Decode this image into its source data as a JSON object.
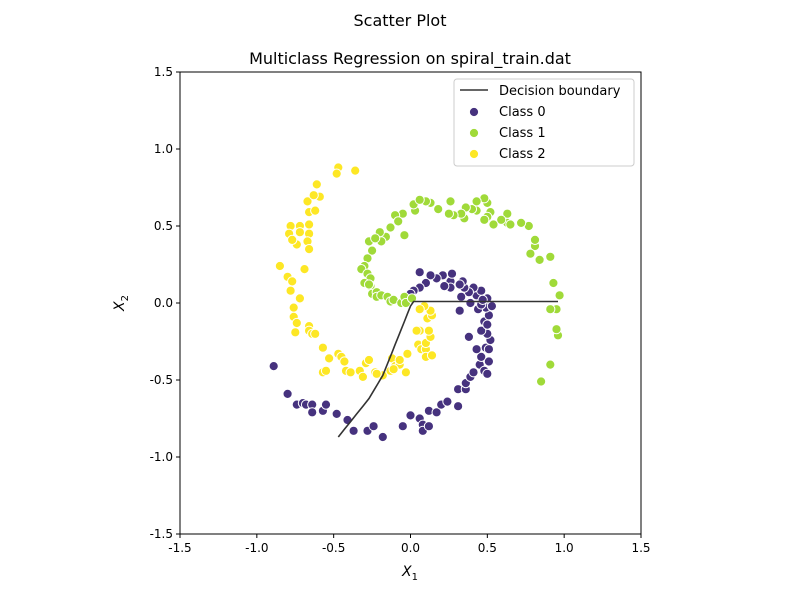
{
  "figure": {
    "suptitle": "Scatter Plot"
  },
  "chart_data": {
    "type": "scatter",
    "title": "Multiclass Regression on spiral_train.dat",
    "xlabel": "X_1",
    "ylabel": "X_2",
    "xlim": [
      -1.5,
      1.5
    ],
    "ylim": [
      -1.5,
      1.5
    ],
    "xticks": [
      "-1.5",
      "-1.0",
      "-0.5",
      "0.0",
      "0.5",
      "1.0",
      "1.5"
    ],
    "yticks": [
      "-1.5",
      "-1.0",
      "-0.5",
      "0.0",
      "0.5",
      "1.0",
      "1.5"
    ],
    "grid": false,
    "legend": {
      "placement": "top-right",
      "entries": [
        {
          "label": "Decision boundary",
          "kind": "line",
          "color": "#333333"
        },
        {
          "label": "Class 0",
          "kind": "marker",
          "color": "#46327e"
        },
        {
          "label": "Class 1",
          "kind": "marker",
          "color": "#a0da39"
        },
        {
          "label": "Class 2",
          "kind": "marker",
          "color": "#fde725"
        }
      ]
    },
    "decision_boundary": {
      "name": "Decision boundary",
      "color": "#333333",
      "points": [
        [
          0.96,
          0.01
        ],
        [
          0.02,
          0.01
        ],
        [
          0.0,
          -0.02
        ],
        [
          -0.02,
          -0.07
        ],
        [
          -0.04,
          -0.12
        ],
        [
          -0.06,
          -0.17
        ],
        [
          -0.08,
          -0.22
        ],
        [
          -0.1,
          -0.27
        ],
        [
          -0.12,
          -0.32
        ],
        [
          -0.14,
          -0.37
        ],
        [
          -0.16,
          -0.42
        ],
        [
          -0.18,
          -0.47
        ],
        [
          -0.21,
          -0.52
        ],
        [
          -0.24,
          -0.57
        ],
        [
          -0.27,
          -0.62
        ],
        [
          -0.31,
          -0.67
        ],
        [
          -0.35,
          -0.72
        ],
        [
          -0.39,
          -0.77
        ],
        [
          -0.43,
          -0.82
        ],
        [
          -0.47,
          -0.87
        ]
      ]
    },
    "series": [
      {
        "name": "Class 0",
        "color": "#46327e",
        "points": [
          [
            -0.89,
            -0.41
          ],
          [
            -0.8,
            -0.59
          ],
          [
            -0.74,
            -0.66
          ],
          [
            -0.7,
            -0.65
          ],
          [
            -0.68,
            -0.66
          ],
          [
            -0.64,
            -0.66
          ],
          [
            -0.64,
            -0.71
          ],
          [
            -0.57,
            -0.7
          ],
          [
            -0.55,
            -0.66
          ],
          [
            -0.48,
            -0.72
          ],
          [
            -0.41,
            -0.76
          ],
          [
            -0.37,
            -0.83
          ],
          [
            -0.28,
            -0.83
          ],
          [
            -0.24,
            -0.8
          ],
          [
            -0.18,
            -0.87
          ],
          [
            -0.05,
            -0.8
          ],
          [
            0.0,
            -0.73
          ],
          [
            0.06,
            -0.75
          ],
          [
            0.08,
            -0.79
          ],
          [
            0.08,
            -0.83
          ],
          [
            0.12,
            -0.8
          ],
          [
            0.12,
            -0.7
          ],
          [
            0.17,
            -0.71
          ],
          [
            0.2,
            -0.66
          ],
          [
            0.24,
            -0.64
          ],
          [
            0.31,
            -0.67
          ],
          [
            0.31,
            -0.56
          ],
          [
            0.36,
            -0.56
          ],
          [
            0.36,
            -0.52
          ],
          [
            0.39,
            -0.48
          ],
          [
            0.41,
            -0.45
          ],
          [
            0.45,
            -0.4
          ],
          [
            0.48,
            -0.44
          ],
          [
            0.5,
            -0.46
          ],
          [
            0.46,
            -0.35
          ],
          [
            0.51,
            -0.38
          ],
          [
            0.43,
            -0.3
          ],
          [
            0.49,
            -0.29
          ],
          [
            0.51,
            -0.3
          ],
          [
            0.52,
            -0.24
          ],
          [
            0.5,
            -0.2
          ],
          [
            0.46,
            -0.18
          ],
          [
            0.48,
            -0.12
          ],
          [
            0.5,
            -0.14
          ],
          [
            0.51,
            -0.08
          ],
          [
            0.49,
            -0.03
          ],
          [
            0.53,
            -0.02
          ],
          [
            0.44,
            -0.04
          ],
          [
            0.46,
            -0.01
          ],
          [
            0.5,
            0.03
          ],
          [
            0.43,
            0.05
          ],
          [
            0.46,
            0.08
          ],
          [
            0.47,
            0.02
          ],
          [
            0.41,
            0.1
          ],
          [
            0.38,
            0.07
          ],
          [
            0.35,
            0.1
          ],
          [
            0.34,
            0.14
          ],
          [
            0.33,
            0.04
          ],
          [
            0.32,
            0.12
          ],
          [
            0.26,
            0.14
          ],
          [
            0.27,
            0.19
          ],
          [
            0.26,
            0.1
          ],
          [
            0.22,
            0.11
          ],
          [
            0.21,
            0.18
          ],
          [
            0.17,
            0.16
          ],
          [
            0.13,
            0.18
          ],
          [
            0.1,
            0.13
          ],
          [
            0.06,
            0.2
          ],
          [
            0.06,
            0.1
          ],
          [
            0.02,
            0.08
          ],
          [
            0.0,
            0.06
          ],
          [
            0.32,
            -0.05
          ],
          [
            0.38,
            -0.22
          ],
          [
            0.39,
            0.0
          ]
        ]
      },
      {
        "name": "Class 1",
        "color": "#a0da39",
        "points": [
          [
            0.85,
            -0.51
          ],
          [
            0.91,
            -0.4
          ],
          [
            0.96,
            -0.21
          ],
          [
            0.95,
            -0.17
          ],
          [
            0.95,
            -0.04
          ],
          [
            0.91,
            -0.04
          ],
          [
            0.97,
            0.05
          ],
          [
            0.93,
            0.13
          ],
          [
            0.91,
            0.3
          ],
          [
            0.84,
            0.28
          ],
          [
            0.81,
            0.37
          ],
          [
            0.81,
            0.41
          ],
          [
            0.77,
            0.5
          ],
          [
            0.63,
            0.52
          ],
          [
            0.65,
            0.51
          ],
          [
            0.63,
            0.58
          ],
          [
            0.59,
            0.54
          ],
          [
            0.54,
            0.51
          ],
          [
            0.52,
            0.59
          ],
          [
            0.5,
            0.56
          ],
          [
            0.48,
            0.54
          ],
          [
            0.5,
            0.65
          ],
          [
            0.48,
            0.68
          ],
          [
            0.43,
            0.6
          ],
          [
            0.4,
            0.61
          ],
          [
            0.36,
            0.62
          ],
          [
            0.35,
            0.55
          ],
          [
            0.33,
            0.58
          ],
          [
            0.28,
            0.57
          ],
          [
            0.25,
            0.58
          ],
          [
            0.18,
            0.61
          ],
          [
            0.13,
            0.65
          ],
          [
            0.1,
            0.66
          ],
          [
            0.03,
            0.6
          ],
          [
            0.02,
            0.64
          ],
          [
            -0.05,
            0.58
          ],
          [
            -0.1,
            0.57
          ],
          [
            -0.04,
            0.44
          ],
          [
            -0.13,
            0.49
          ],
          [
            -0.16,
            0.43
          ],
          [
            -0.19,
            0.4
          ],
          [
            -0.2,
            0.46
          ],
          [
            -0.27,
            0.4
          ],
          [
            -0.25,
            0.34
          ],
          [
            -0.28,
            0.29
          ],
          [
            -0.3,
            0.24
          ],
          [
            -0.32,
            0.22
          ],
          [
            -0.28,
            0.19
          ],
          [
            -0.26,
            0.16
          ],
          [
            -0.3,
            0.13
          ],
          [
            -0.26,
            0.11
          ],
          [
            -0.25,
            0.06
          ],
          [
            -0.22,
            0.07
          ],
          [
            -0.22,
            0.04
          ],
          [
            -0.19,
            0.05
          ],
          [
            -0.15,
            0.04
          ],
          [
            -0.13,
            0.01
          ],
          [
            -0.11,
            0.02
          ],
          [
            -0.06,
            0.0
          ],
          [
            -0.04,
            0.04
          ],
          [
            -0.03,
            0.0
          ],
          [
            -0.27,
            0.12
          ],
          [
            -0.23,
            0.42
          ],
          [
            0.01,
            0.03
          ],
          [
            0.26,
            0.66
          ],
          [
            0.43,
            0.66
          ],
          [
            0.72,
            0.52
          ],
          [
            0.78,
            0.32
          ],
          [
            0.06,
            0.67
          ],
          [
            -0.08,
            0.53
          ]
        ]
      },
      {
        "name": "Class 2",
        "color": "#fde725",
        "points": [
          [
            -0.47,
            0.88
          ],
          [
            -0.48,
            0.84
          ],
          [
            -0.36,
            0.86
          ],
          [
            -0.61,
            0.77
          ],
          [
            -0.59,
            0.69
          ],
          [
            -0.67,
            0.66
          ],
          [
            -0.66,
            0.59
          ],
          [
            -0.62,
            0.6
          ],
          [
            -0.66,
            0.51
          ],
          [
            -0.72,
            0.5
          ],
          [
            -0.78,
            0.5
          ],
          [
            -0.79,
            0.45
          ],
          [
            -0.72,
            0.46
          ],
          [
            -0.66,
            0.45
          ],
          [
            -0.67,
            0.4
          ],
          [
            -0.74,
            0.38
          ],
          [
            -0.77,
            0.41
          ],
          [
            -0.69,
            0.22
          ],
          [
            -0.85,
            0.24
          ],
          [
            -0.8,
            0.17
          ],
          [
            -0.77,
            0.14
          ],
          [
            -0.78,
            0.08
          ],
          [
            -0.72,
            0.03
          ],
          [
            -0.76,
            -0.03
          ],
          [
            -0.76,
            -0.09
          ],
          [
            -0.74,
            -0.13
          ],
          [
            -0.66,
            -0.15
          ],
          [
            -0.66,
            -0.18
          ],
          [
            -0.64,
            -0.2
          ],
          [
            -0.62,
            -0.2
          ],
          [
            -0.75,
            -0.19
          ],
          [
            -0.57,
            -0.29
          ],
          [
            -0.53,
            -0.36
          ],
          [
            -0.47,
            -0.33
          ],
          [
            -0.45,
            -0.35
          ],
          [
            -0.43,
            -0.38
          ],
          [
            -0.42,
            -0.44
          ],
          [
            -0.39,
            -0.45
          ],
          [
            -0.33,
            -0.44
          ],
          [
            -0.31,
            -0.48
          ],
          [
            -0.29,
            -0.39
          ],
          [
            -0.27,
            -0.37
          ],
          [
            -0.23,
            -0.45
          ],
          [
            -0.18,
            -0.47
          ],
          [
            -0.13,
            -0.44
          ],
          [
            -0.12,
            -0.36
          ],
          [
            -0.1,
            -0.41
          ],
          [
            -0.07,
            -0.4
          ],
          [
            -0.07,
            -0.37
          ],
          [
            -0.02,
            -0.33
          ],
          [
            -0.03,
            -0.45
          ],
          [
            0.05,
            -0.27
          ],
          [
            0.07,
            -0.3
          ],
          [
            0.1,
            -0.3
          ],
          [
            0.1,
            -0.35
          ],
          [
            0.14,
            -0.34
          ],
          [
            0.1,
            -0.26
          ],
          [
            0.13,
            -0.22
          ],
          [
            0.06,
            -0.18
          ],
          [
            0.12,
            -0.18
          ],
          [
            0.11,
            -0.1
          ],
          [
            0.14,
            -0.08
          ],
          [
            0.13,
            -0.05
          ],
          [
            0.09,
            -0.02
          ],
          [
            0.06,
            -0.04
          ],
          [
            -0.57,
            -0.45
          ],
          [
            -0.55,
            -0.44
          ],
          [
            0.04,
            -0.18
          ],
          [
            -0.11,
            -0.43
          ],
          [
            -0.22,
            -0.46
          ],
          [
            -0.66,
            0.35
          ],
          [
            -0.63,
            0.7
          ]
        ]
      }
    ]
  }
}
